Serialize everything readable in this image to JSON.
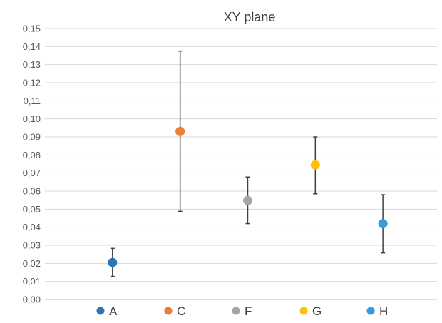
{
  "chart_data": {
    "type": "scatter",
    "title": "XY plane",
    "xlabel": "",
    "ylabel": "",
    "ylim": [
      0,
      0.15
    ],
    "y_ticks": [
      "0,00",
      "0,01",
      "0,02",
      "0,03",
      "0,04",
      "0,05",
      "0,06",
      "0,07",
      "0,08",
      "0,09",
      "0,10",
      "0,11",
      "0,12",
      "0,13",
      "0,14",
      "0,15"
    ],
    "grid": true,
    "legend_position": "bottom",
    "series": [
      {
        "name": "A",
        "color": "#2E75B6",
        "x": 1,
        "y": 0.0205,
        "err_low": 0.0128,
        "err_high": 0.0283
      },
      {
        "name": "C",
        "color": "#ED7D31",
        "x": 2,
        "y": 0.093,
        "err_low": 0.0488,
        "err_high": 0.1375
      },
      {
        "name": "F",
        "color": "#A5A5A5",
        "x": 3,
        "y": 0.0548,
        "err_low": 0.042,
        "err_high": 0.0678
      },
      {
        "name": "G",
        "color": "#FFC000",
        "x": 4,
        "y": 0.0745,
        "err_low": 0.0585,
        "err_high": 0.09
      },
      {
        "name": "H",
        "color": "#2E9FD9",
        "x": 5,
        "y": 0.042,
        "err_low": 0.0258,
        "err_high": 0.058
      }
    ]
  }
}
